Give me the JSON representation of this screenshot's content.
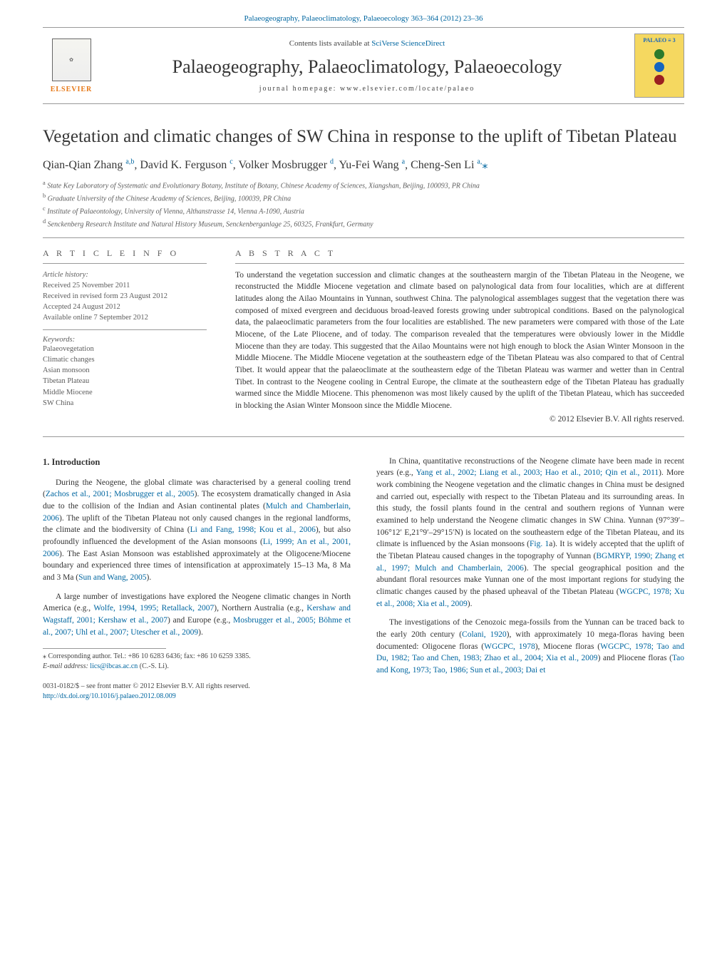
{
  "header": {
    "citation": "Palaeogeography, Palaeoclimatology, Palaeoecology 363–364 (2012) 23–36",
    "contents_text": "Contents lists available at ",
    "contents_link": "SciVerse ScienceDirect",
    "journal_title": "Palaeogeography, Palaeoclimatology, Palaeoecology",
    "homepage": "journal homepage: www.elsevier.com/locate/palaeo",
    "elsevier": "ELSEVIER",
    "cover_label": "PALAEO ≡ 3"
  },
  "article": {
    "title": "Vegetation and climatic changes of SW China in response to the uplift of Tibetan Plateau",
    "authors_html": "Qian-Qian Zhang <sup>a,b</sup>, David K. Ferguson <sup>c</sup>, Volker Mosbrugger <sup>d</sup>, Yu-Fei Wang <sup>a</sup>, Cheng-Sen Li <sup>a,</sup><span class='star'>⁎</span>",
    "affiliations": [
      "a State Key Laboratory of Systematic and Evolutionary Botany, Institute of Botany, Chinese Academy of Sciences, Xiangshan, Beijing, 100093, PR China",
      "b Graduate University of the Chinese Academy of Sciences, Beijing, 100039, PR China",
      "c Institute of Palaeontology, University of Vienna, Althanstrasse 14, Vienna A-1090, Austria",
      "d Senckenberg Research Institute and Natural History Museum, Senckenberganlage 25, 60325, Frankfurt, Germany"
    ]
  },
  "info": {
    "article_info_head": "A R T I C L E   I N F O",
    "abstract_head": "A B S T R A C T",
    "history_label": "Article history:",
    "history": [
      "Received 25 November 2011",
      "Received in revised form 23 August 2012",
      "Accepted 24 August 2012",
      "Available online 7 September 2012"
    ],
    "keywords_label": "Keywords:",
    "keywords": [
      "Palaeovegetation",
      "Climatic changes",
      "Asian monsoon",
      "Tibetan Plateau",
      "Middle Miocene",
      "SW China"
    ]
  },
  "abstract": {
    "text": "To understand the vegetation succession and climatic changes at the southeastern margin of the Tibetan Plateau in the Neogene, we reconstructed the Middle Miocene vegetation and climate based on palynological data from four localities, which are at different latitudes along the Ailao Mountains in Yunnan, southwest China. The palynological assemblages suggest that the vegetation there was composed of mixed evergreen and deciduous broad-leaved forests growing under subtropical conditions. Based on the palynological data, the palaeoclimatic parameters from the four localities are established. The new parameters were compared with those of the Late Miocene, of the Late Pliocene, and of today. The comparison revealed that the temperatures were obviously lower in the Middle Miocene than they are today. This suggested that the Ailao Mountains were not high enough to block the Asian Winter Monsoon in the Middle Miocene. The Middle Miocene vegetation at the southeastern edge of the Tibetan Plateau was also compared to that of Central Tibet. It would appear that the palaeoclimate at the southeastern edge of the Tibetan Plateau was warmer and wetter than in Central Tibet. In contrast to the Neogene cooling in Central Europe, the climate at the southeastern edge of the Tibetan Plateau has gradually warmed since the Middle Miocene. This phenomenon was most likely caused by the uplift of the Tibetan Plateau, which has succeeded in blocking the Asian Winter Monsoon since the Middle Miocene.",
    "copyright": "© 2012 Elsevier B.V. All rights reserved."
  },
  "body": {
    "intro_head": "1. Introduction",
    "left": [
      "During the Neogene, the global climate was characterised by a general cooling trend (<a>Zachos et al., 2001; Mosbrugger et al., 2005</a>). The ecosystem dramatically changed in Asia due to the collision of the Indian and Asian continental plates (<a>Mulch and Chamberlain, 2006</a>). The uplift of the Tibetan Plateau not only caused changes in the regional landforms, the climate and the biodiversity of China (<a>Li and Fang, 1998; Kou et al., 2006</a>), but also profoundly influenced the development of the Asian monsoons (<a>Li, 1999; An et al., 2001, 2006</a>). The East Asian Monsoon was established approximately at the Oligocene/Miocene boundary and experienced three times of intensification at approximately 15–13 Ma, 8 Ma and 3 Ma (<a>Sun and Wang, 2005</a>).",
      "A large number of investigations have explored the Neogene climatic changes in North America (e.g., <a>Wolfe, 1994, 1995; Retallack, 2007</a>), Northern Australia (e.g., <a>Kershaw and Wagstaff, 2001; Kershaw et al., 2007</a>) and Europe (e.g., <a>Mosbrugger et al., 2005; Böhme et al., 2007; Uhl et al., 2007; Utescher et al., 2009</a>)."
    ],
    "right": [
      "In China, quantitative reconstructions of the Neogene climate have been made in recent years (e.g., <a>Yang et al., 2002; Liang et al., 2003; Hao et al., 2010; Qin et al., 2011</a>). More work combining the Neogene vegetation and the climatic changes in China must be designed and carried out, especially with respect to the Tibetan Plateau and its surrounding areas. In this study, the fossil plants found in the central and southern regions of Yunnan were examined to help understand the Neogene climatic changes in SW China. Yunnan (97°39′–106°12′ E,21°9′–29°15′N) is located on the southeastern edge of the Tibetan Plateau, and its climate is influenced by the Asian monsoons (<a>Fig. 1</a>a). It is widely accepted that the uplift of the Tibetan Plateau caused changes in the topography of Yunnan (<a>BGMRYP, 1990; Zhang et al., 1997; Mulch and Chamberlain, 2006</a>). The special geographical position and the abundant floral resources make Yunnan one of the most important regions for studying the climatic changes caused by the phased upheaval of the Tibetan Plateau (<a>WGCPC, 1978; Xu et al., 2008; Xia et al., 2009</a>).",
      "The investigations of the Cenozoic mega-fossils from the Yunnan can be traced back to the early 20th century (<a>Colani, 1920</a>), with approximately 10 mega-floras having been documented: Oligocene floras (<a>WGCPC, 1978</a>), Miocene floras (<a>WGCPC, 1978; Tao and Du, 1982; Tao and Chen, 1983; Zhao et al., 2004; Xia et al., 2009</a>) and Pliocene floras (<a>Tao and Kong, 1973; Tao, 1986; Sun et al., 2003; Dai et</a>"
    ]
  },
  "footnote": {
    "corr": "⁎ Corresponding author. Tel.: +86 10 6283 6436; fax: +86 10 6259 3385.",
    "email_label": "E-mail address: ",
    "email": "lics@ibcas.ac.cn",
    "email_paren": " (C.-S. Li)."
  },
  "doi": {
    "issn": "0031-0182/$ – see front matter © 2012 Elsevier B.V. All rights reserved.",
    "link": "http://dx.doi.org/10.1016/j.palaeo.2012.08.009"
  },
  "colors": {
    "link": "#0066a0",
    "elsevier_orange": "#e67817",
    "cover_bg": "#f5d860",
    "dots": [
      "#2c7a2c",
      "#1565c0",
      "#9b2020"
    ]
  }
}
